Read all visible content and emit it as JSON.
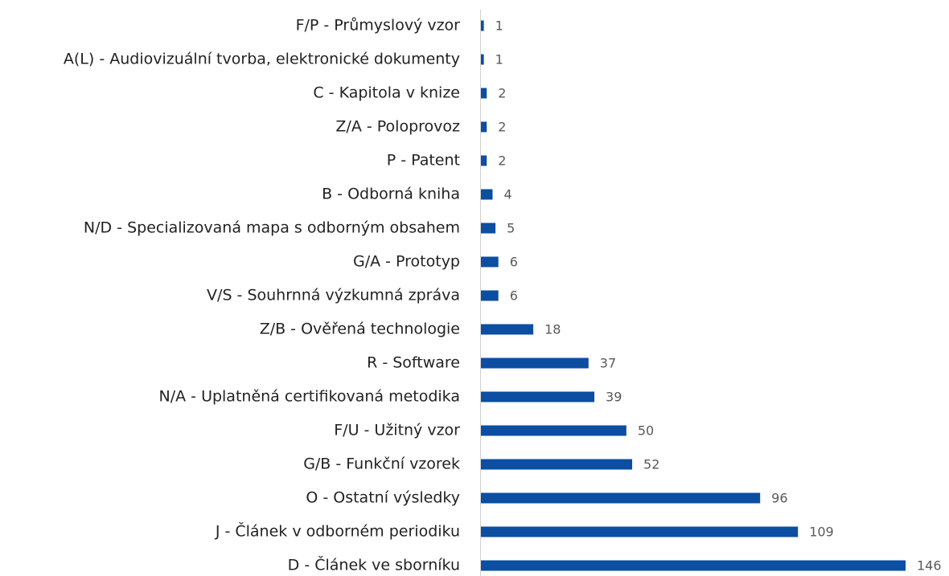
{
  "chart_data": {
    "type": "barh",
    "categories": [
      "F/P - Průmyslový vzor",
      "A(L) - Audiovizuální tvorba, elektronické dokumenty",
      "C - Kapitola v knize",
      "Z/A - Poloprovoz",
      "P - Patent",
      "B - Odborná kniha",
      "N/D - Specializovaná mapa s odborným obsahem",
      "G/A - Prototyp",
      "V/S - Souhrnná výzkumná zpráva",
      "Z/B - Ověřená technologie",
      "R - Software",
      "N/A - Uplatněná certifikovaná metodika",
      "F/U - Užitný vzor",
      "G/B - Funkční vzorek",
      "O - Ostatní výsledky",
      "J - Článek v odborném periodiku",
      "D - Článek ve sborníku"
    ],
    "values": [
      1,
      1,
      2,
      2,
      2,
      4,
      5,
      6,
      6,
      18,
      37,
      39,
      50,
      52,
      96,
      109,
      146
    ],
    "color": "#0b4ea2"
  }
}
